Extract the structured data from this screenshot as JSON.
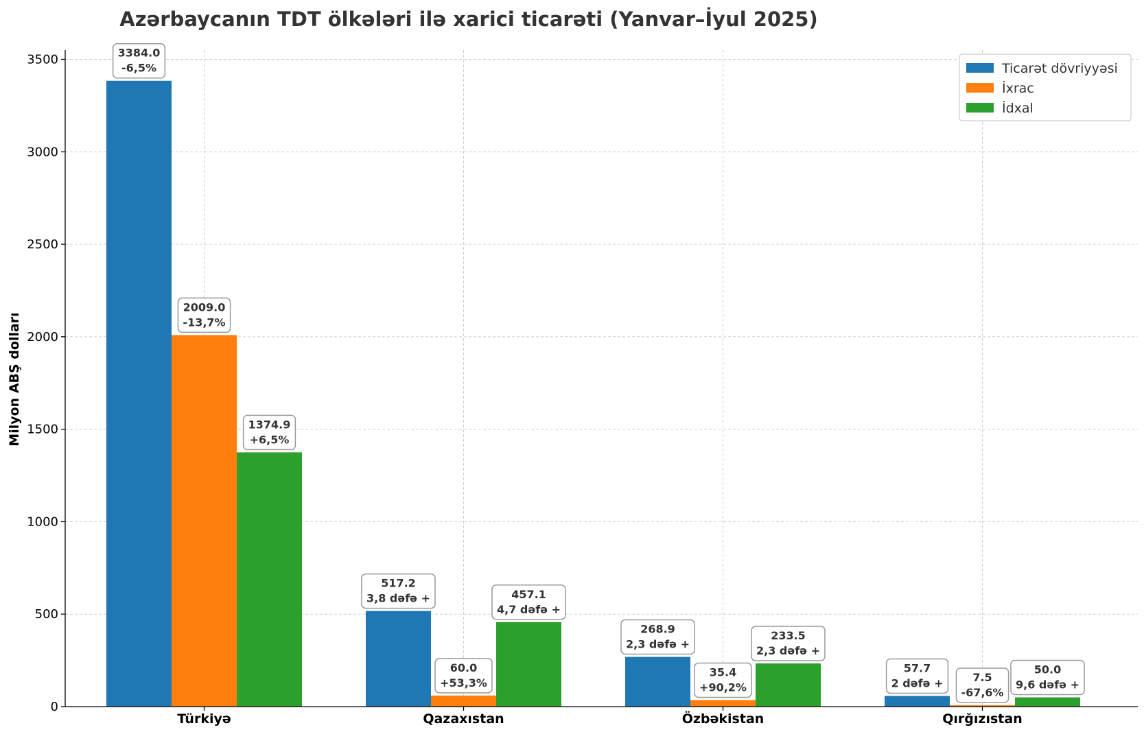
{
  "chart_data": {
    "type": "bar",
    "title": "Azərbaycanın TDT ölkələri ilə xarici ticarəti (Yanvar–İyul 2025)",
    "xlabel": "",
    "ylabel": "Milyon ABŞ dolları",
    "ylim": [
      0,
      3550
    ],
    "yticks": [
      0,
      500,
      1000,
      1500,
      2000,
      2500,
      3000,
      3500
    ],
    "categories": [
      "Türkiyə",
      "Qazaxıstan",
      "Özbəkistan",
      "Qırğızıstan"
    ],
    "grid": true,
    "legend_position": "top-right",
    "series": [
      {
        "name": "Ticarət dövriyyəsi",
        "color": "#1f77b4",
        "values": [
          3384.0,
          517.2,
          268.9,
          57.7
        ],
        "labels": [
          "3384.0",
          "517.2",
          "268.9",
          "57.7"
        ],
        "changes": [
          "-6,5%",
          "3,8 dəfə +",
          "2,3 dəfə +",
          "2 dəfə +"
        ]
      },
      {
        "name": "İxrac",
        "color": "#ff7f0e",
        "values": [
          2009.0,
          60.0,
          35.4,
          7.5
        ],
        "labels": [
          "2009.0",
          "60.0",
          "35.4",
          "7.5"
        ],
        "changes": [
          "-13,7%",
          "+53,3%",
          "+90,2%",
          "-67,6%"
        ]
      },
      {
        "name": "İdxal",
        "color": "#2ca02c",
        "values": [
          1374.9,
          457.1,
          233.5,
          50.0
        ],
        "labels": [
          "1374.9",
          "457.1",
          "233.5",
          "50.0"
        ],
        "changes": [
          "+6,5%",
          "4,7 dəfə +",
          "2,3 dəfə +",
          "9,6 dəfə +"
        ]
      }
    ]
  }
}
